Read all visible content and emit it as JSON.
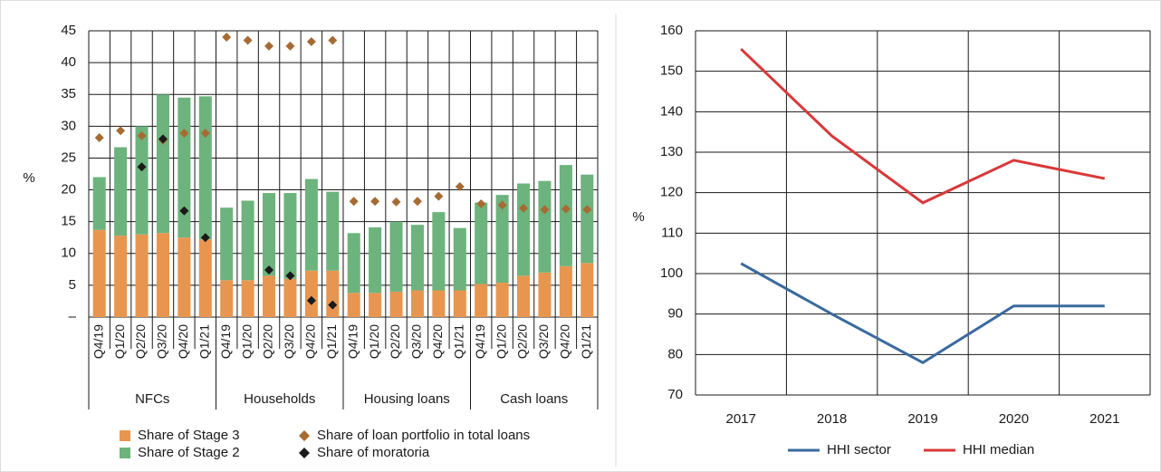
{
  "chart_data": [
    {
      "type": "stacked_bar",
      "ylabel": "%",
      "categories": [
        "Q4/19",
        "Q1/20",
        "Q2/20",
        "Q3/20",
        "Q4/20",
        "Q1/21",
        "Q4/19",
        "Q1/20",
        "Q2/20",
        "Q3/20",
        "Q4/20",
        "Q1/21",
        "Q4/19",
        "Q1/20",
        "Q2/20",
        "Q3/20",
        "Q4/20",
        "Q1/21",
        "Q4/19",
        "Q1/20",
        "Q2/20",
        "Q3/20",
        "Q4/20",
        "Q1/21"
      ],
      "groups": [
        "NFCs",
        "Households",
        "Housing loans",
        "Cash loans"
      ],
      "series": [
        {
          "name": "Share of Stage 3",
          "kind": "bar",
          "color": "#e8964f",
          "values": [
            13.7,
            12.8,
            13,
            13.2,
            12.5,
            12.2,
            5.8,
            5.8,
            6.5,
            6,
            7.3,
            7.3,
            3.8,
            3.8,
            4,
            4.2,
            4.2,
            4.2,
            5.2,
            5.4,
            6.5,
            7,
            8,
            8.5
          ]
        },
        {
          "name": "Share of Stage 2",
          "kind": "bar",
          "color": "#6db37d",
          "values": [
            8.3,
            13.9,
            17,
            21.8,
            22,
            22.5,
            11.4,
            12.5,
            13,
            13.5,
            14.4,
            12.4,
            9.4,
            10.3,
            11,
            10.3,
            12.3,
            9.8,
            12.8,
            13.8,
            14.5,
            14.4,
            15.9,
            13.9
          ]
        },
        {
          "name": "Share of loan portfolio in total loans",
          "kind": "point",
          "color": "#a66b33",
          "values": [
            28.2,
            29.3,
            28.5,
            27.8,
            28.9,
            28.9,
            44,
            43.5,
            42.6,
            42.6,
            43.3,
            43.5,
            18.2,
            18.2,
            18.1,
            18.2,
            19,
            20.5,
            17.8,
            17.6,
            17.1,
            16.9,
            17,
            16.9
          ]
        },
        {
          "name": "Share of moratoria",
          "kind": "point",
          "color": "#1a1a1a",
          "values": [
            null,
            null,
            23.6,
            28,
            16.7,
            12.5,
            null,
            null,
            7.4,
            6.5,
            2.6,
            1.9,
            null,
            null,
            null,
            null,
            null,
            null,
            null,
            null,
            null,
            null,
            null,
            null
          ]
        }
      ],
      "ylim": [
        0,
        45
      ],
      "yticks": [
        {
          "value": 0,
          "label": "–"
        },
        5,
        10,
        15,
        20,
        25,
        30,
        35,
        40,
        45
      ],
      "grid": true
    },
    {
      "type": "line",
      "ylabel": "%",
      "categories": [
        "2017",
        "2018",
        "2019",
        "2020",
        "2021"
      ],
      "series": [
        {
          "name": "HHI sector",
          "color": "#3a6a9e",
          "values": [
            102.5,
            90,
            78,
            92,
            92
          ]
        },
        {
          "name": "HHI median",
          "color": "#d9383a",
          "values": [
            155.5,
            134,
            117.5,
            128,
            123.5
          ]
        }
      ],
      "ylim": [
        70,
        160
      ],
      "yticks": [
        70,
        80,
        90,
        100,
        110,
        120,
        130,
        140,
        150,
        160
      ],
      "grid": true
    }
  ]
}
